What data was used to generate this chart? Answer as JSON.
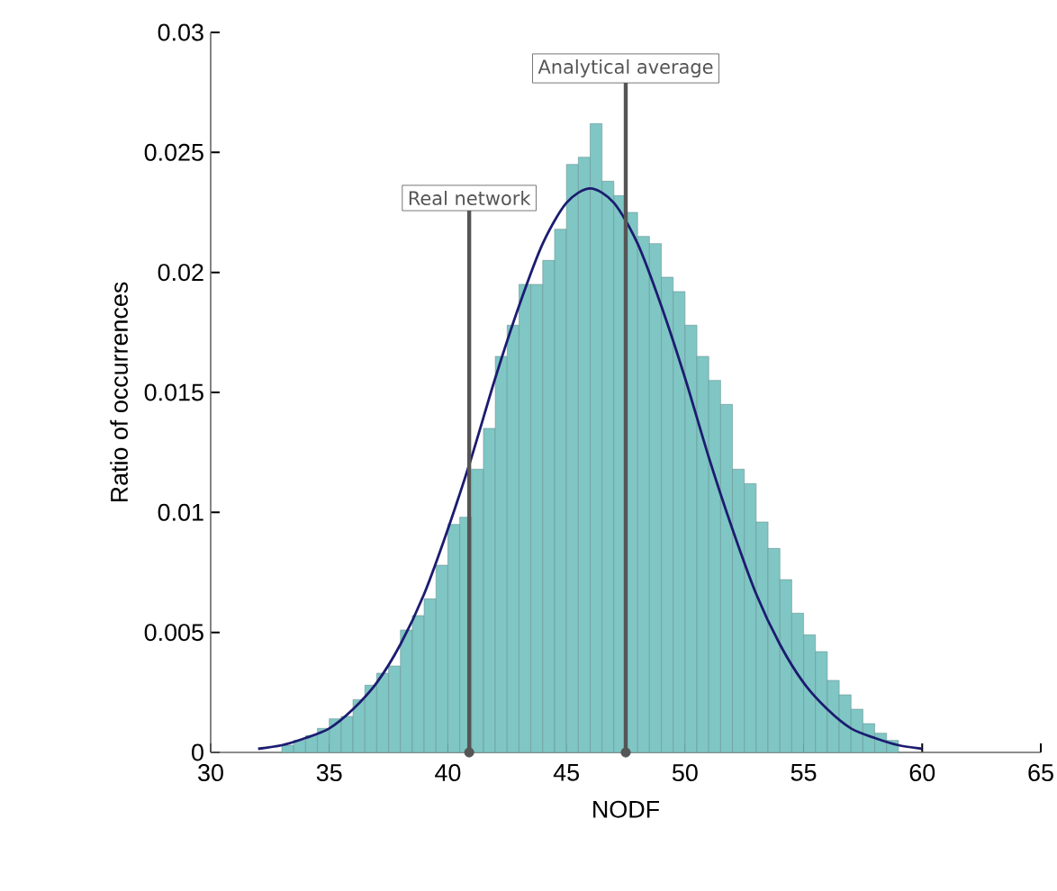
{
  "chart_data": {
    "type": "histogram",
    "xlabel": "NODF",
    "ylabel": "Ratio of occurrences",
    "xlim": [
      30,
      65
    ],
    "ylim": [
      0,
      0.03
    ],
    "xticks": [
      30,
      35,
      40,
      45,
      50,
      55,
      60,
      65
    ],
    "yticks": [
      0,
      0.005,
      0.01,
      0.015,
      0.02,
      0.025,
      0.03
    ],
    "series": [
      {
        "color": "#7fc6c4",
        "bins": [
          33,
          33.5,
          34,
          34.5,
          35,
          35.5,
          36,
          36.5,
          37,
          37.5,
          38,
          38.5,
          39,
          39.5,
          40,
          40.5,
          41,
          41.5,
          42,
          42.5,
          43,
          43.5,
          44,
          44.5,
          45,
          45.5,
          46,
          46.5,
          47,
          47.5,
          48,
          48.5,
          49,
          49.5,
          50,
          50.5,
          51,
          51.5,
          52,
          52.5,
          53,
          53.5,
          54,
          54.5,
          55,
          55.5,
          56,
          56.5,
          57,
          57.5,
          58,
          58.5,
          59
        ],
        "values": [
          0.0003,
          0.0005,
          0.0007,
          0.001,
          0.0014,
          0.0015,
          0.0022,
          0.0028,
          0.0033,
          0.0036,
          0.0051,
          0.0057,
          0.0064,
          0.0078,
          0.0095,
          0.0098,
          0.0118,
          0.0135,
          0.0165,
          0.0178,
          0.0195,
          0.0195,
          0.0205,
          0.0218,
          0.0245,
          0.0248,
          0.0262,
          0.0238,
          0.0232,
          0.0225,
          0.0215,
          0.0212,
          0.0198,
          0.0192,
          0.0178,
          0.0165,
          0.0155,
          0.0145,
          0.0118,
          0.0112,
          0.0096,
          0.0085,
          0.0072,
          0.0058,
          0.0049,
          0.0042,
          0.003,
          0.0024,
          0.0018,
          0.0012,
          0.0008,
          0.0005
        ]
      },
      {
        "type": "line",
        "color": "#1c1c70",
        "x": [
          32,
          33,
          34,
          35,
          36,
          37,
          38,
          39,
          40,
          41,
          42,
          43,
          44,
          45,
          46,
          47,
          48,
          49,
          50,
          51,
          52,
          53,
          54,
          55,
          56,
          57,
          58,
          59,
          60
        ],
        "values": [
          0.00015,
          0.0003,
          0.0006,
          0.001,
          0.0018,
          0.0029,
          0.0045,
          0.0066,
          0.0093,
          0.0123,
          0.0156,
          0.0186,
          0.0212,
          0.0229,
          0.0235,
          0.0229,
          0.0212,
          0.0186,
          0.0156,
          0.0123,
          0.0093,
          0.0066,
          0.0045,
          0.0029,
          0.0018,
          0.001,
          0.0006,
          0.0003,
          0.00015
        ]
      },
      {
        "type": "scatter",
        "color": "#555555",
        "marker": "circle",
        "x": [
          40.9,
          47.5
        ],
        "values": [
          0,
          0
        ]
      }
    ],
    "ref_lines": [
      {
        "axis": "x",
        "value": 40.9,
        "label": "Real network",
        "color": "#555555"
      },
      {
        "axis": "x",
        "value": 47.5,
        "label": "Analytical average",
        "color": "#555555"
      }
    ],
    "marker": "none",
    "grid": false
  }
}
